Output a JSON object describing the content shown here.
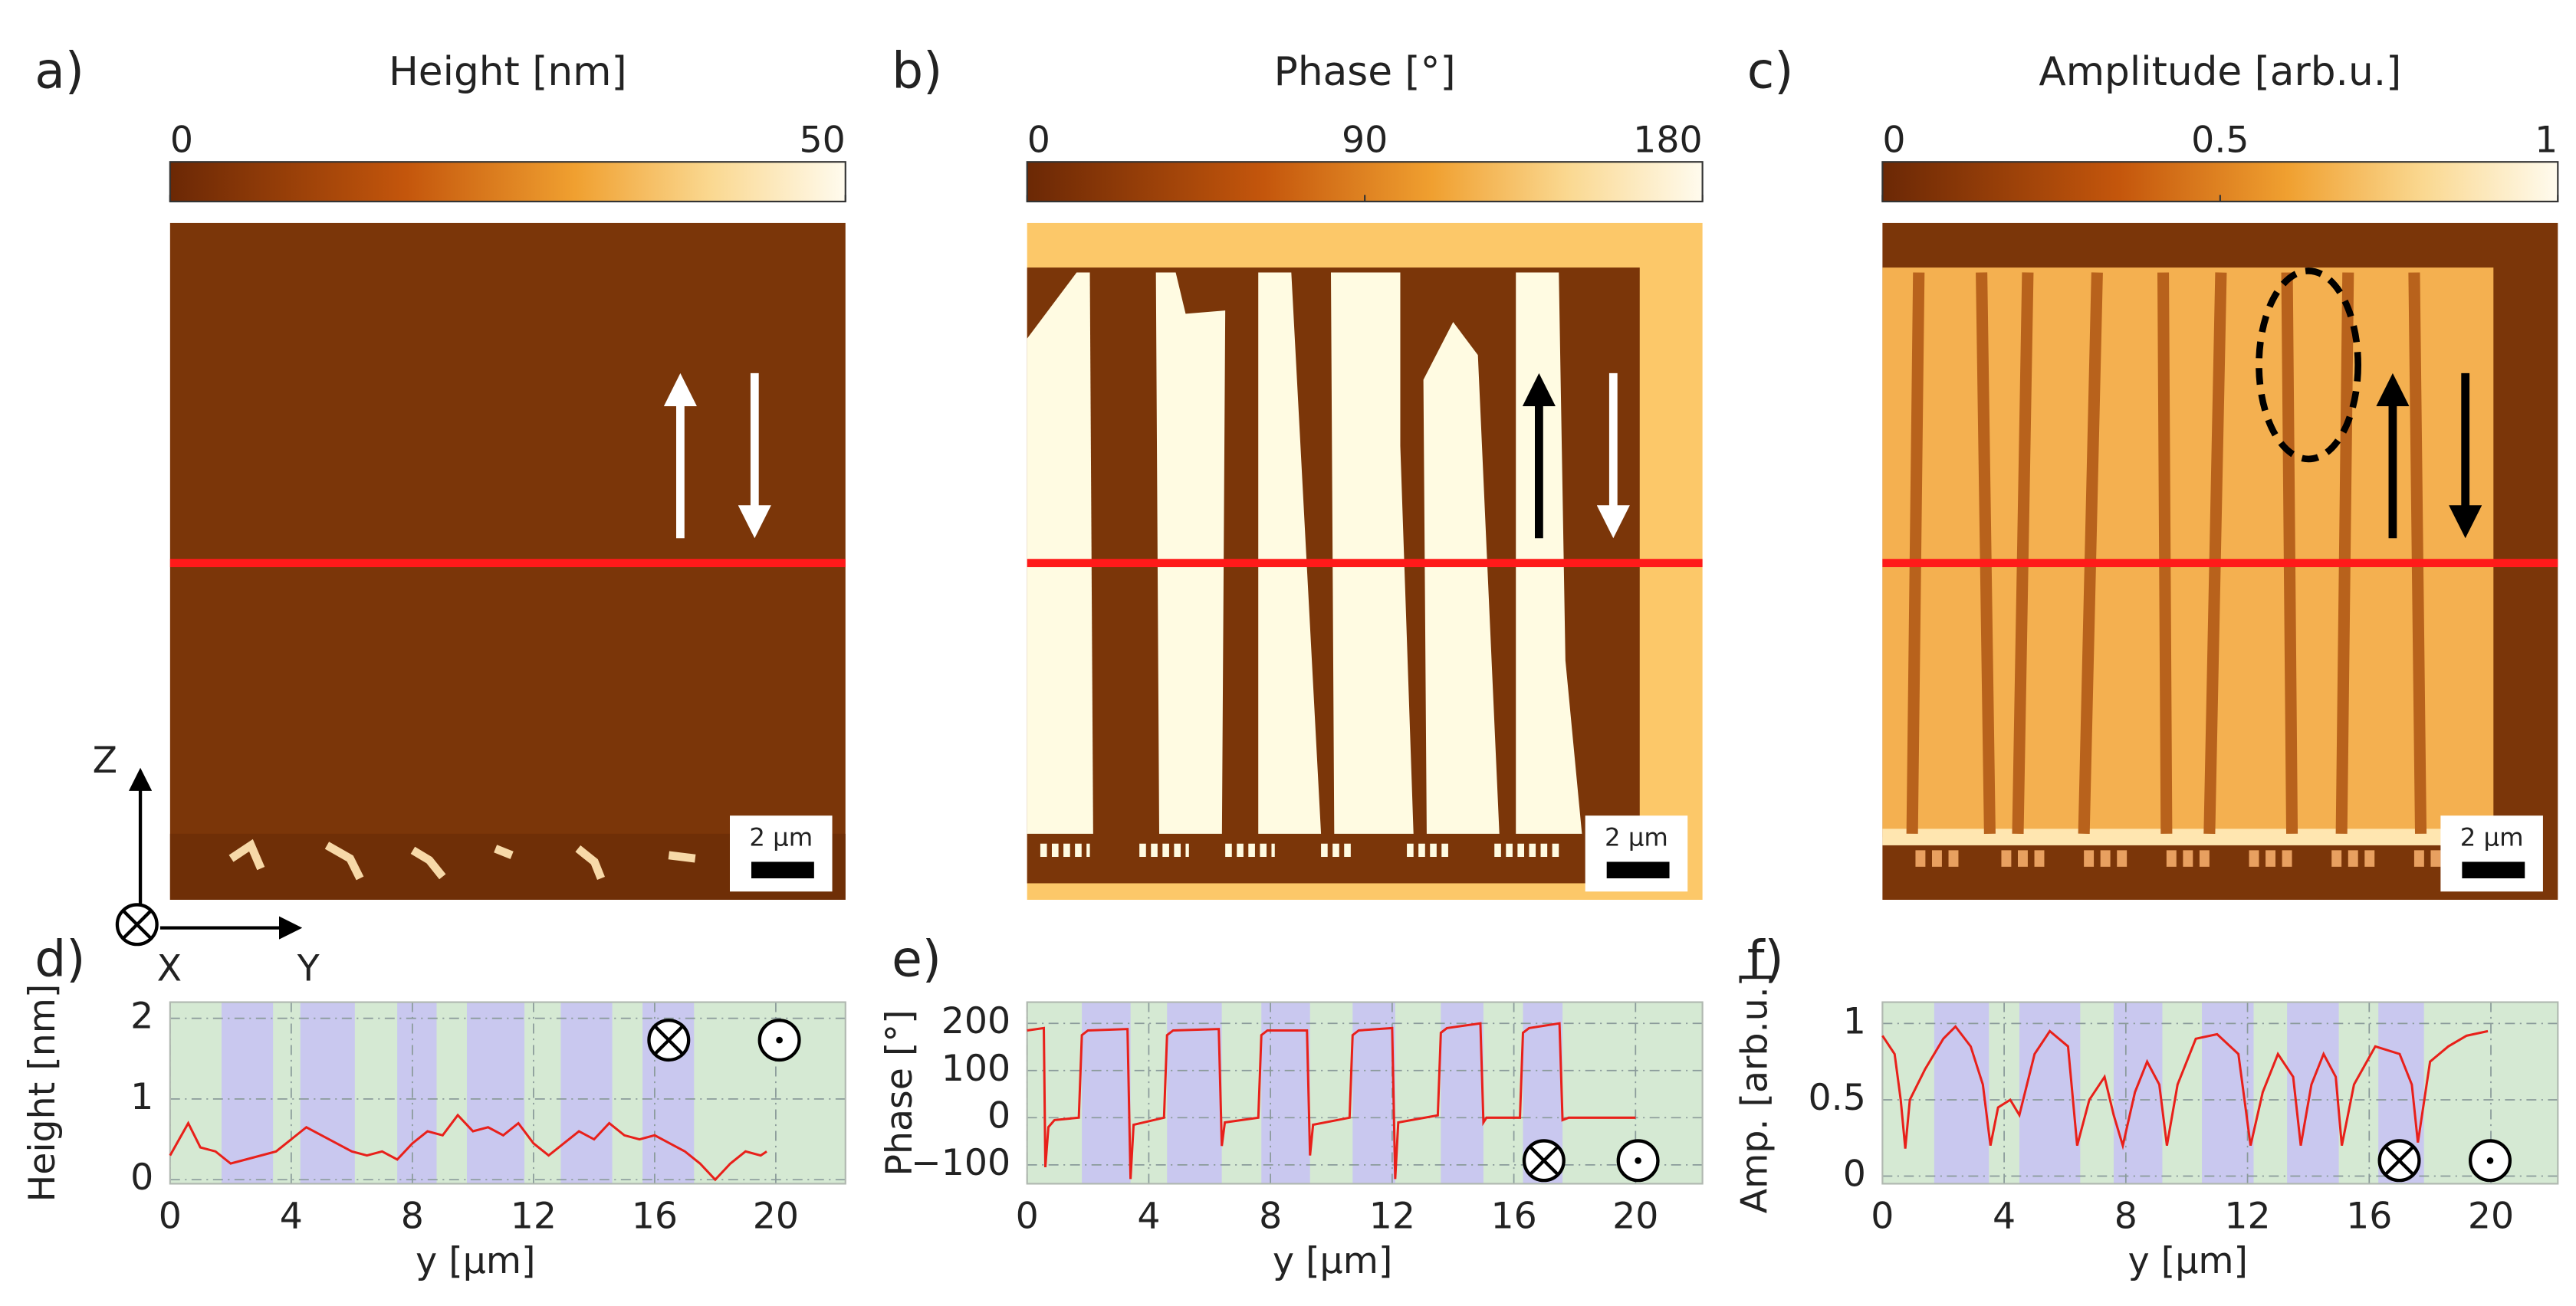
{
  "chart_data": [
    {
      "type": "image",
      "label": "a)",
      "colorbar_title": "Height [nm]",
      "clim": [
        0,
        50
      ],
      "cticks": [
        0,
        50
      ],
      "scale_bar": "2 µm",
      "axis_labels": [
        "Z",
        "X",
        "Y"
      ]
    },
    {
      "type": "image",
      "label": "b)",
      "colorbar_title": "Phase [°]",
      "clim": [
        0,
        180
      ],
      "cticks": [
        0,
        90,
        180
      ],
      "scale_bar": "2 µm"
    },
    {
      "type": "image",
      "label": "c)",
      "colorbar_title": "Amplitude [arb.u.]",
      "clim": [
        0,
        1
      ],
      "cticks": [
        0,
        0.5,
        1
      ],
      "scale_bar": "2 µm"
    },
    {
      "type": "line",
      "label": "d)",
      "xlabel": "y [µm]",
      "ylabel": "Height [nm]",
      "color": "#e8201a",
      "grid": true,
      "xlim": [
        0,
        22.3
      ],
      "ylim": [
        -0.05,
        2.2
      ],
      "xticks": [
        0,
        4,
        8,
        12,
        16,
        20
      ],
      "yticks": [
        0,
        1,
        2
      ],
      "bands": [
        [
          1.7,
          3.4
        ],
        [
          4.3,
          6.1
        ],
        [
          7.5,
          8.8
        ],
        [
          9.8,
          11.7
        ],
        [
          12.9,
          14.6
        ],
        [
          15.6,
          17.3
        ]
      ],
      "x": [
        0,
        0.3,
        0.6,
        1,
        1.5,
        2,
        2.5,
        3,
        3.5,
        4,
        4.5,
        5,
        5.5,
        6,
        6.5,
        7,
        7.5,
        8,
        8.5,
        9,
        9.5,
        10,
        10.5,
        11,
        11.5,
        12,
        12.5,
        13,
        13.5,
        14,
        14.5,
        15,
        15.5,
        16,
        16.5,
        17,
        17.5,
        18,
        18.5,
        19,
        19.5,
        19.7
      ],
      "values": [
        0.3,
        0.5,
        0.7,
        0.4,
        0.35,
        0.2,
        0.25,
        0.3,
        0.35,
        0.5,
        0.65,
        0.55,
        0.45,
        0.35,
        0.3,
        0.35,
        0.25,
        0.45,
        0.6,
        0.55,
        0.8,
        0.6,
        0.65,
        0.55,
        0.7,
        0.45,
        0.3,
        0.45,
        0.6,
        0.5,
        0.7,
        0.55,
        0.5,
        0.55,
        0.45,
        0.35,
        0.2,
        0.0,
        0.2,
        0.35,
        0.3,
        0.35
      ]
    },
    {
      "type": "line",
      "label": "e)",
      "xlabel": "y [µm]",
      "ylabel": "Phase [°]",
      "color": "#e8201a",
      "grid": true,
      "xlim": [
        0,
        22.2
      ],
      "ylim": [
        -140,
        245
      ],
      "xticks": [
        0,
        4,
        8,
        12,
        16,
        20
      ],
      "yticks": [
        {
          "value": -100,
          "label": "−100"
        },
        0,
        100,
        200
      ],
      "bands": [
        [
          1.8,
          3.4
        ],
        [
          4.6,
          6.4
        ],
        [
          7.7,
          9.3
        ],
        [
          10.7,
          12.1
        ],
        [
          13.6,
          15.0
        ],
        [
          16.3,
          17.6
        ]
      ],
      "x": [
        0,
        0.55,
        0.6,
        0.7,
        0.9,
        1.7,
        1.8,
        2.0,
        3.3,
        3.4,
        3.5,
        4.5,
        4.6,
        4.8,
        6.3,
        6.4,
        6.5,
        7.6,
        7.7,
        7.9,
        9.2,
        9.3,
        9.4,
        10.6,
        10.7,
        10.9,
        12.0,
        12.1,
        12.2,
        13.5,
        13.6,
        13.8,
        14.9,
        15.0,
        15.1,
        16.2,
        16.3,
        16.5,
        17.5,
        17.6,
        17.8,
        20
      ],
      "values": [
        185,
        190,
        -105,
        -20,
        -5,
        0,
        175,
        185,
        188,
        -130,
        -15,
        0,
        175,
        185,
        188,
        -60,
        -10,
        0,
        175,
        185,
        185,
        -80,
        -15,
        0,
        175,
        185,
        190,
        -130,
        -10,
        5,
        180,
        190,
        200,
        -10,
        0,
        0,
        180,
        190,
        200,
        -5,
        0,
        0
      ]
    },
    {
      "type": "line",
      "label": "f)",
      "xlabel": "y [µm]",
      "ylabel": "Amp. [arb.u.]",
      "color": "#e8201a",
      "grid": true,
      "xlim": [
        0,
        22.2
      ],
      "ylim": [
        -0.05,
        1.14
      ],
      "xticks": [
        0,
        4,
        8,
        12,
        16,
        20
      ],
      "yticks": [
        0,
        0.5,
        1
      ],
      "bands": [
        [
          1.7,
          3.5
        ],
        [
          4.5,
          6.5
        ],
        [
          7.6,
          9.2
        ],
        [
          10.5,
          12.2
        ],
        [
          13.3,
          15.0
        ],
        [
          16.3,
          17.8
        ]
      ],
      "x": [
        0,
        0.4,
        0.6,
        0.75,
        0.9,
        1.4,
        2.0,
        2.4,
        2.9,
        3.3,
        3.55,
        3.8,
        4.2,
        4.5,
        5.0,
        5.5,
        6.1,
        6.4,
        6.8,
        7.3,
        7.6,
        7.9,
        8.3,
        8.7,
        9.1,
        9.35,
        9.7,
        10.3,
        11.0,
        11.7,
        12.1,
        12.5,
        13.0,
        13.5,
        13.75,
        14.1,
        14.5,
        14.9,
        15.1,
        15.5,
        16.2,
        17.0,
        17.4,
        17.6,
        18.0,
        18.6,
        19.2,
        19.9
      ],
      "values": [
        0.92,
        0.8,
        0.5,
        0.18,
        0.5,
        0.7,
        0.9,
        0.98,
        0.85,
        0.6,
        0.2,
        0.45,
        0.5,
        0.4,
        0.8,
        0.95,
        0.85,
        0.2,
        0.5,
        0.65,
        0.4,
        0.2,
        0.55,
        0.75,
        0.6,
        0.2,
        0.6,
        0.9,
        0.93,
        0.8,
        0.2,
        0.55,
        0.8,
        0.65,
        0.2,
        0.6,
        0.8,
        0.65,
        0.2,
        0.6,
        0.85,
        0.8,
        0.6,
        0.22,
        0.75,
        0.85,
        0.92,
        0.95
      ]
    }
  ]
}
